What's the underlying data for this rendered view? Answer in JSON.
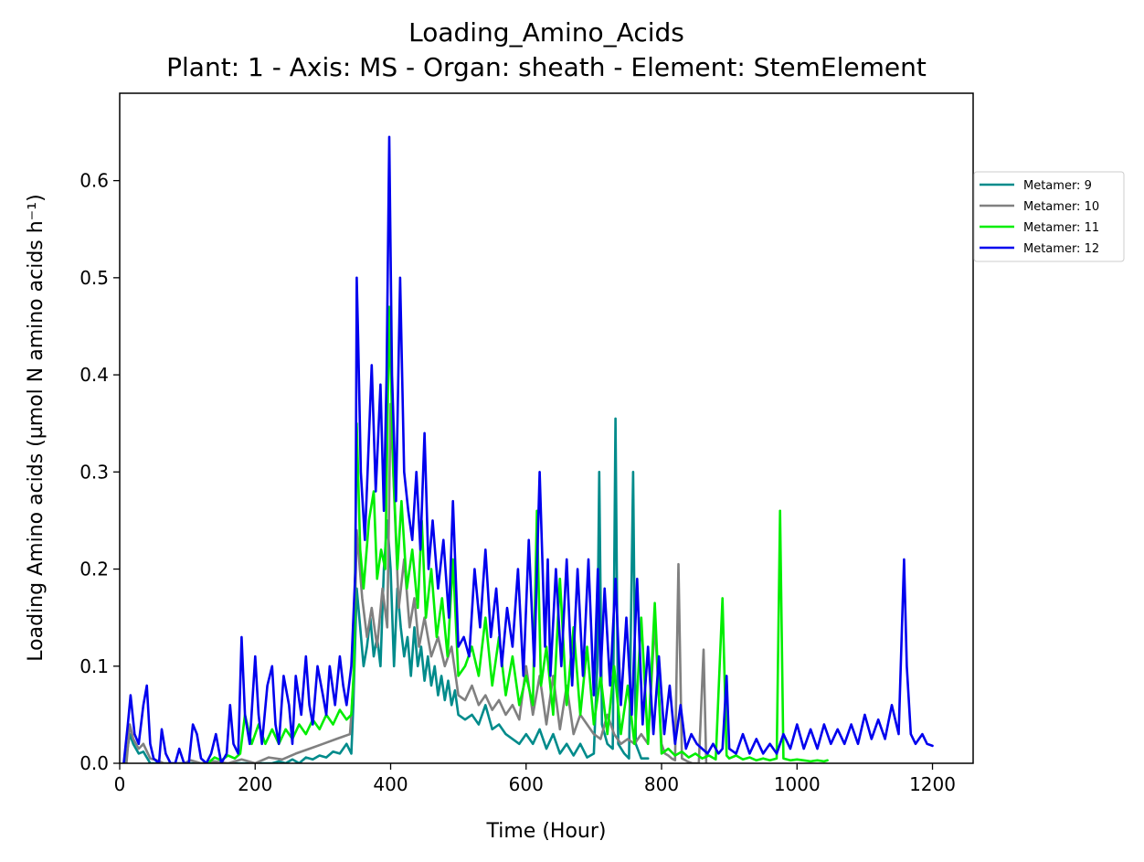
{
  "chart_data": {
    "type": "line",
    "title": "Loading_Amino_Acids",
    "subtitle": "Plant: 1 - Axis: MS - Organ: sheath - Element: StemElement",
    "xlabel": "Time (Hour)",
    "ylabel": "Loading Amino acids (µmol N amino acids h⁻¹)",
    "xlim": [
      0,
      1260
    ],
    "ylim": [
      0,
      0.69
    ],
    "xticks": [
      "0",
      "200",
      "400",
      "600",
      "800",
      "1000",
      "1200"
    ],
    "yticks": [
      "0.0",
      "0.1",
      "0.2",
      "0.3",
      "0.4",
      "0.5",
      "0.6"
    ],
    "grid": false,
    "legend_position": "right, outside plot area",
    "series": [
      {
        "name": "Metamer: 9",
        "color": "#008b8b",
        "x": [
          8,
          15,
          20,
          28,
          35,
          45,
          55,
          62,
          70,
          80,
          90,
          100,
          110,
          120,
          130,
          140,
          150,
          160,
          170,
          178,
          185,
          195,
          205,
          215,
          225,
          235,
          245,
          255,
          265,
          275,
          285,
          295,
          305,
          315,
          325,
          335,
          342,
          345,
          350,
          355,
          360,
          365,
          370,
          375,
          380,
          385,
          390,
          395,
          400,
          405,
          410,
          415,
          420,
          425,
          430,
          435,
          440,
          445,
          450,
          455,
          460,
          465,
          470,
          475,
          480,
          485,
          490,
          495,
          500,
          510,
          520,
          530,
          540,
          550,
          560,
          570,
          580,
          590,
          600,
          610,
          620,
          630,
          640,
          650,
          660,
          670,
          680,
          690,
          700,
          705,
          708,
          712,
          720,
          728,
          732,
          736,
          745,
          752,
          758,
          762,
          770,
          780
        ],
        "y": [
          0.0,
          0.03,
          0.02,
          0.01,
          0.012,
          0.0,
          0.0,
          0.0,
          0.0,
          0.0,
          0.0,
          0.0,
          0.0,
          0.0,
          0.0,
          0.0,
          0.0,
          0.0,
          0.0,
          0.0,
          0.0,
          0.0,
          0.0,
          0.0,
          0.0,
          0.002,
          0.0,
          0.004,
          0.0,
          0.006,
          0.004,
          0.008,
          0.006,
          0.012,
          0.01,
          0.02,
          0.01,
          0.06,
          0.18,
          0.14,
          0.1,
          0.12,
          0.15,
          0.11,
          0.13,
          0.1,
          0.2,
          0.25,
          0.2,
          0.1,
          0.18,
          0.14,
          0.11,
          0.13,
          0.09,
          0.14,
          0.1,
          0.12,
          0.085,
          0.11,
          0.08,
          0.1,
          0.07,
          0.09,
          0.065,
          0.085,
          0.06,
          0.075,
          0.05,
          0.045,
          0.05,
          0.04,
          0.06,
          0.035,
          0.04,
          0.03,
          0.025,
          0.02,
          0.03,
          0.02,
          0.035,
          0.015,
          0.03,
          0.01,
          0.02,
          0.008,
          0.02,
          0.006,
          0.01,
          0.1,
          0.3,
          0.04,
          0.02,
          0.015,
          0.355,
          0.02,
          0.01,
          0.005,
          0.3,
          0.02,
          0.005,
          0.005
        ]
      },
      {
        "name": "Metamer: 10",
        "color": "#808080",
        "x": [
          10,
          15,
          20,
          28,
          35,
          45,
          55,
          65,
          75,
          85,
          95,
          105,
          120,
          140,
          160,
          180,
          200,
          220,
          240,
          260,
          280,
          300,
          320,
          340,
          345,
          350,
          358,
          365,
          372,
          380,
          388,
          395,
          400,
          405,
          412,
          420,
          428,
          435,
          442,
          450,
          460,
          470,
          480,
          490,
          500,
          510,
          520,
          530,
          540,
          550,
          560,
          570,
          580,
          590,
          600,
          610,
          620,
          630,
          640,
          650,
          660,
          670,
          680,
          690,
          700,
          710,
          720,
          730,
          740,
          750,
          760,
          770,
          780,
          790,
          800,
          805,
          810,
          815,
          820,
          825,
          830,
          838,
          845,
          850,
          855,
          862,
          866
        ],
        "y": [
          0.0,
          0.04,
          0.025,
          0.015,
          0.02,
          0.005,
          0.003,
          0.0,
          0.0,
          0.0,
          0.0,
          0.003,
          0.0,
          0.002,
          0.0,
          0.004,
          0.0,
          0.006,
          0.004,
          0.01,
          0.015,
          0.02,
          0.025,
          0.03,
          0.08,
          0.24,
          0.17,
          0.13,
          0.16,
          0.12,
          0.18,
          0.14,
          0.37,
          0.28,
          0.16,
          0.21,
          0.14,
          0.17,
          0.12,
          0.15,
          0.11,
          0.13,
          0.1,
          0.12,
          0.07,
          0.065,
          0.08,
          0.06,
          0.07,
          0.055,
          0.065,
          0.05,
          0.06,
          0.045,
          0.1,
          0.05,
          0.09,
          0.04,
          0.09,
          0.035,
          0.08,
          0.03,
          0.05,
          0.04,
          0.03,
          0.025,
          0.05,
          0.03,
          0.02,
          0.025,
          0.02,
          0.03,
          0.02,
          0.145,
          0.02,
          0.01,
          0.008,
          0.005,
          0.003,
          0.205,
          0.005,
          0.002,
          0.0,
          0.0,
          0.0,
          0.117,
          0.0
        ]
      },
      {
        "name": "Metamer: 11",
        "color": "#00ee00",
        "x": [
          130,
          140,
          150,
          160,
          170,
          178,
          185,
          195,
          205,
          215,
          225,
          235,
          245,
          255,
          265,
          275,
          285,
          295,
          305,
          315,
          325,
          335,
          342,
          346,
          350,
          355,
          360,
          368,
          375,
          380,
          386,
          392,
          398,
          404,
          410,
          416,
          424,
          432,
          440,
          446,
          452,
          460,
          468,
          476,
          484,
          492,
          500,
          510,
          520,
          530,
          540,
          550,
          560,
          570,
          580,
          590,
          600,
          610,
          616,
          622,
          630,
          640,
          650,
          660,
          670,
          680,
          690,
          700,
          710,
          720,
          730,
          740,
          750,
          760,
          770,
          780,
          790,
          800,
          810,
          820,
          830,
          840,
          850,
          860,
          870,
          880,
          890,
          896,
          900,
          910,
          920,
          930,
          940,
          950,
          960,
          970,
          975,
          980,
          990,
          1000,
          1010,
          1020,
          1030,
          1040,
          1045
        ],
        "y": [
          0.0,
          0.006,
          0.003,
          0.008,
          0.005,
          0.01,
          0.05,
          0.02,
          0.04,
          0.02,
          0.035,
          0.02,
          0.035,
          0.025,
          0.04,
          0.03,
          0.045,
          0.035,
          0.05,
          0.04,
          0.055,
          0.045,
          0.05,
          0.1,
          0.35,
          0.22,
          0.18,
          0.25,
          0.28,
          0.19,
          0.22,
          0.2,
          0.47,
          0.3,
          0.2,
          0.27,
          0.18,
          0.22,
          0.16,
          0.25,
          0.15,
          0.2,
          0.13,
          0.17,
          0.11,
          0.21,
          0.09,
          0.1,
          0.12,
          0.09,
          0.15,
          0.08,
          0.13,
          0.07,
          0.11,
          0.06,
          0.09,
          0.06,
          0.26,
          0.08,
          0.12,
          0.05,
          0.19,
          0.06,
          0.14,
          0.05,
          0.12,
          0.04,
          0.09,
          0.03,
          0.1,
          0.03,
          0.08,
          0.02,
          0.15,
          0.02,
          0.165,
          0.01,
          0.015,
          0.008,
          0.012,
          0.006,
          0.01,
          0.005,
          0.008,
          0.004,
          0.17,
          0.008,
          0.005,
          0.008,
          0.004,
          0.006,
          0.003,
          0.005,
          0.003,
          0.005,
          0.26,
          0.005,
          0.003,
          0.004,
          0.003,
          0.002,
          0.003,
          0.002,
          0.003
        ]
      },
      {
        "name": "Metamer: 12",
        "color": "#0000ee",
        "x": [
          6,
          12,
          16,
          22,
          28,
          35,
          40,
          45,
          50,
          58,
          62,
          68,
          75,
          82,
          88,
          95,
          102,
          108,
          114,
          120,
          128,
          135,
          142,
          150,
          158,
          163,
          168,
          175,
          180,
          185,
          192,
          200,
          205,
          210,
          218,
          225,
          230,
          235,
          242,
          250,
          255,
          260,
          268,
          275,
          280,
          285,
          292,
          300,
          305,
          310,
          318,
          325,
          330,
          335,
          342,
          348,
          350,
          352,
          356,
          362,
          366,
          372,
          378,
          385,
          390,
          394,
          398,
          402,
          408,
          414,
          420,
          426,
          432,
          438,
          444,
          450,
          456,
          462,
          470,
          478,
          486,
          492,
          500,
          508,
          516,
          524,
          532,
          540,
          548,
          556,
          564,
          572,
          580,
          588,
          596,
          604,
          612,
          620,
          628,
          632,
          636,
          644,
          652,
          660,
          668,
          676,
          684,
          692,
          700,
          706,
          710,
          716,
          724,
          732,
          740,
          748,
          756,
          764,
          772,
          780,
          788,
          796,
          804,
          812,
          820,
          828,
          836,
          844,
          852,
          860,
          868,
          876,
          884,
          890,
          896,
          900,
          910,
          920,
          930,
          940,
          950,
          960,
          970,
          980,
          990,
          1000,
          1010,
          1020,
          1030,
          1040,
          1050,
          1060,
          1070,
          1080,
          1090,
          1100,
          1110,
          1120,
          1130,
          1140,
          1150,
          1158,
          1162,
          1168,
          1175,
          1185,
          1192,
          1200
        ],
        "y": [
          0.0,
          0.04,
          0.07,
          0.03,
          0.02,
          0.06,
          0.08,
          0.02,
          0.005,
          0.0,
          0.035,
          0.01,
          0.0,
          0.0,
          0.015,
          0.0,
          0.0,
          0.04,
          0.03,
          0.005,
          0.0,
          0.01,
          0.03,
          0.0,
          0.01,
          0.06,
          0.02,
          0.01,
          0.13,
          0.05,
          0.02,
          0.11,
          0.05,
          0.02,
          0.08,
          0.1,
          0.04,
          0.02,
          0.09,
          0.06,
          0.02,
          0.09,
          0.05,
          0.11,
          0.06,
          0.04,
          0.1,
          0.07,
          0.05,
          0.1,
          0.06,
          0.11,
          0.08,
          0.06,
          0.1,
          0.2,
          0.5,
          0.44,
          0.3,
          0.23,
          0.3,
          0.41,
          0.28,
          0.39,
          0.26,
          0.4,
          0.645,
          0.4,
          0.27,
          0.5,
          0.3,
          0.26,
          0.23,
          0.3,
          0.22,
          0.34,
          0.2,
          0.25,
          0.18,
          0.23,
          0.15,
          0.27,
          0.12,
          0.13,
          0.11,
          0.2,
          0.14,
          0.22,
          0.13,
          0.18,
          0.1,
          0.16,
          0.12,
          0.2,
          0.09,
          0.23,
          0.1,
          0.3,
          0.12,
          0.21,
          0.09,
          0.2,
          0.1,
          0.21,
          0.08,
          0.2,
          0.09,
          0.21,
          0.07,
          0.2,
          0.09,
          0.18,
          0.08,
          0.19,
          0.06,
          0.15,
          0.05,
          0.19,
          0.04,
          0.12,
          0.03,
          0.11,
          0.03,
          0.08,
          0.02,
          0.06,
          0.015,
          0.03,
          0.02,
          0.015,
          0.01,
          0.02,
          0.01,
          0.015,
          0.09,
          0.015,
          0.01,
          0.03,
          0.01,
          0.025,
          0.01,
          0.02,
          0.01,
          0.03,
          0.015,
          0.04,
          0.015,
          0.035,
          0.015,
          0.04,
          0.02,
          0.035,
          0.02,
          0.04,
          0.02,
          0.05,
          0.025,
          0.045,
          0.025,
          0.06,
          0.03,
          0.21,
          0.1,
          0.03,
          0.02,
          0.03,
          0.02,
          0.018
        ]
      }
    ]
  }
}
